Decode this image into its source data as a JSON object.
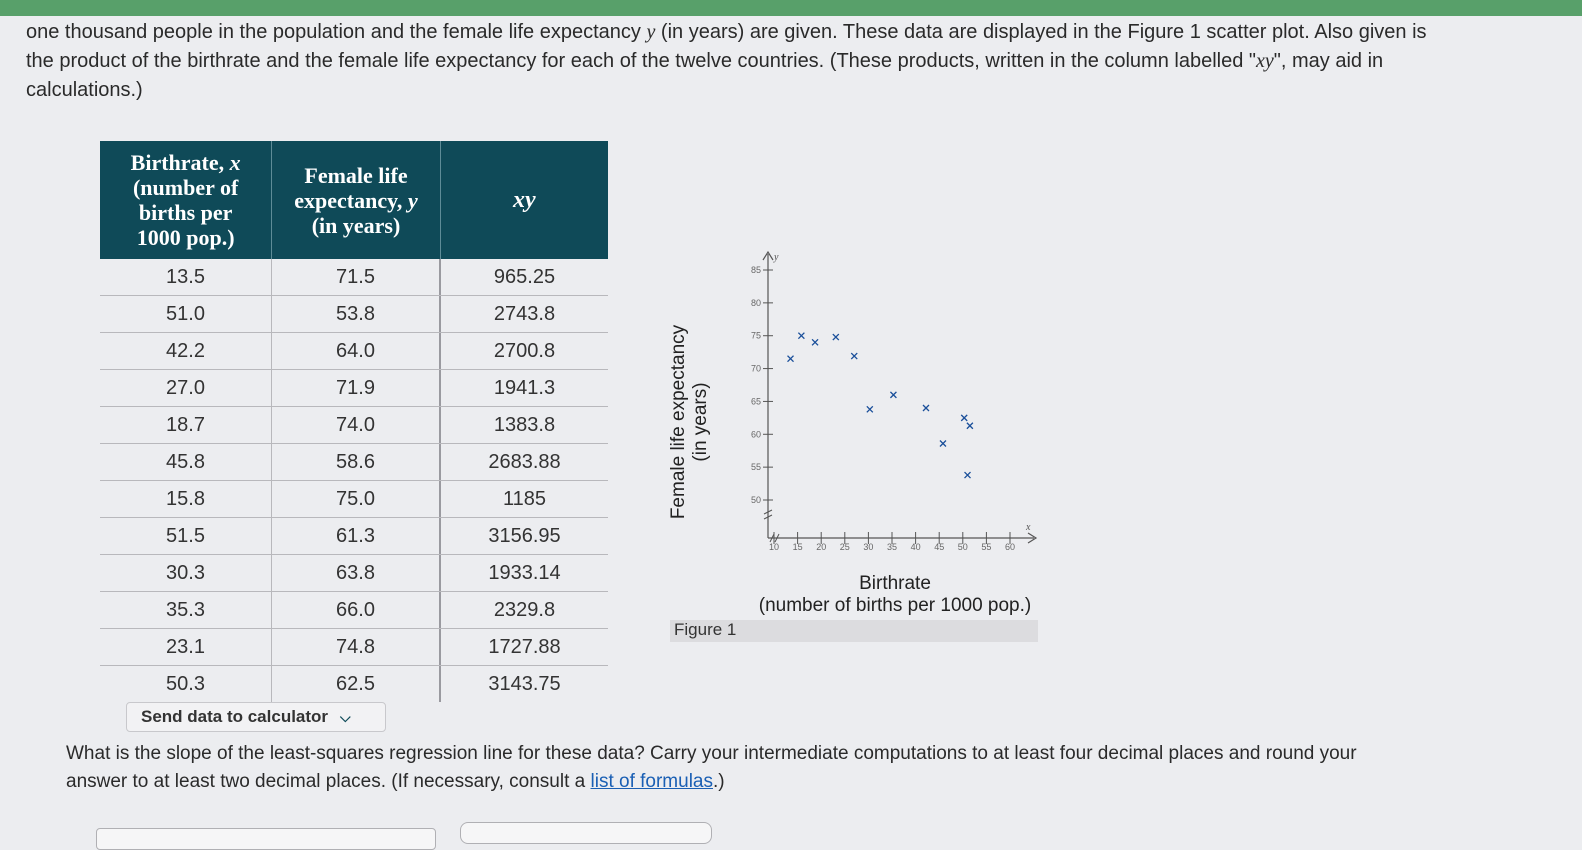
{
  "intro": {
    "line1a": "one thousand people in the population and the female life expectancy ",
    "line1var": "y",
    "line1b": " (in years) are given. These data are displayed in the Figure 1 scatter plot. Also given is",
    "line2": "the product of the birthrate and the female life expectancy for each of the twelve countries. (These products, written in the column labelled \"",
    "line2var": "xy",
    "line2b": "\", may aid in",
    "line3": "calculations.)"
  },
  "table": {
    "headers": {
      "col1_a": "Birthrate, ",
      "col1_var": "x",
      "col1_b": "(number of",
      "col1_c": "births per",
      "col1_d": "1000 pop.)",
      "col2_a": "Female life",
      "col2_b": "expectancy, ",
      "col2_var": "y",
      "col2_c": "(in years)",
      "col3": "xy"
    },
    "rows": [
      [
        "13.5",
        "71.5",
        "965.25"
      ],
      [
        "51.0",
        "53.8",
        "2743.8"
      ],
      [
        "42.2",
        "64.0",
        "2700.8"
      ],
      [
        "27.0",
        "71.9",
        "1941.3"
      ],
      [
        "18.7",
        "74.0",
        "1383.8"
      ],
      [
        "45.8",
        "58.6",
        "2683.88"
      ],
      [
        "15.8",
        "75.0",
        "1185"
      ],
      [
        "51.5",
        "61.3",
        "3156.95"
      ],
      [
        "30.3",
        "63.8",
        "1933.14"
      ],
      [
        "35.3",
        "66.0",
        "2329.8"
      ],
      [
        "23.1",
        "74.8",
        "1727.88"
      ],
      [
        "50.3",
        "62.5",
        "3143.75"
      ]
    ],
    "send_label": "Send data to calculator"
  },
  "figure": {
    "caption": "Figure 1",
    "ylabel_line1": "Female life expectancy",
    "ylabel_line2": "(in years)",
    "xlabel_line1": "Birthrate",
    "xlabel_line2": "(number of births per 1000 pop.)"
  },
  "chart_data": {
    "type": "scatter",
    "xlabel": "Birthrate (number of births per 1000 pop.)",
    "ylabel": "Female life expectancy (in years)",
    "x_axis_var": "x",
    "y_axis_var": "y",
    "xlim": [
      10,
      60
    ],
    "ylim": [
      50,
      85
    ],
    "xticks": [
      "10",
      "15",
      "20",
      "25",
      "30",
      "35",
      "40",
      "45",
      "50",
      "55",
      "60"
    ],
    "yticks": [
      "50",
      "55",
      "60",
      "65",
      "70",
      "75",
      "80",
      "85"
    ],
    "points": [
      {
        "x": 13.5,
        "y": 71.5
      },
      {
        "x": 51.0,
        "y": 53.8
      },
      {
        "x": 42.2,
        "y": 64.0
      },
      {
        "x": 27.0,
        "y": 71.9
      },
      {
        "x": 18.7,
        "y": 74.0
      },
      {
        "x": 45.8,
        "y": 58.6
      },
      {
        "x": 15.8,
        "y": 75.0
      },
      {
        "x": 51.5,
        "y": 61.3
      },
      {
        "x": 30.3,
        "y": 63.8
      },
      {
        "x": 35.3,
        "y": 66.0
      },
      {
        "x": 23.1,
        "y": 74.8
      },
      {
        "x": 50.3,
        "y": 62.5
      }
    ]
  },
  "question": {
    "line1": "What is the slope of the least-squares regression line for these data? Carry your intermediate computations to at least four decimal places and round your",
    "line2": "answer to at least two decimal places. (If necessary, consult a ",
    "link": "list of formulas",
    "line2_end": ".)"
  }
}
